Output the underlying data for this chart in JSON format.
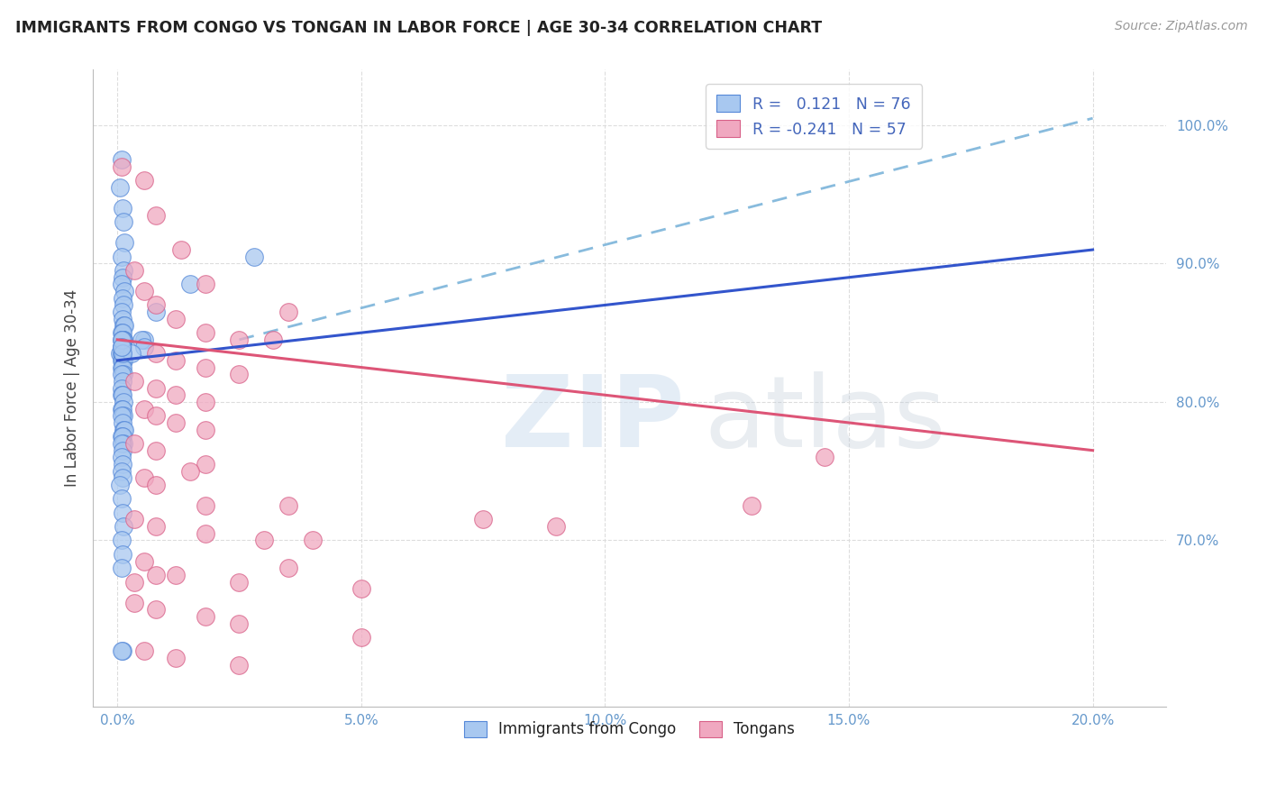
{
  "title": "IMMIGRANTS FROM CONGO VS TONGAN IN LABOR FORCE | AGE 30-34 CORRELATION CHART",
  "source": "Source: ZipAtlas.com",
  "xlabel_ticks": [
    "0.0%",
    "5.0%",
    "10.0%",
    "15.0%",
    "20.0%"
  ],
  "xlabel_vals": [
    0.0,
    5.0,
    10.0,
    15.0,
    20.0
  ],
  "ylabel_right_ticks": [
    "100.0%",
    "90.0%",
    "80.0%",
    "70.0%"
  ],
  "ylabel_right_vals": [
    100.0,
    90.0,
    80.0,
    70.0
  ],
  "xlim": [
    -0.5,
    21.5
  ],
  "ylim": [
    58.0,
    104.0
  ],
  "ylabel": "In Labor Force | Age 30-34",
  "legend_r_congo": "0.121",
  "legend_n_congo": "76",
  "legend_r_tongan": "-0.241",
  "legend_n_tongan": "57",
  "congo_color": "#A8C8F0",
  "tongan_color": "#F0A8C0",
  "congo_edge_color": "#5588D8",
  "tongan_edge_color": "#D86088",
  "congo_line_color": "#3355CC",
  "tongan_line_color": "#DD5577",
  "dashed_line_color": "#88BBDD",
  "background": "#FFFFFF",
  "grid_color": "#DDDDDD",
  "tick_color": "#6699CC",
  "ylabel_color": "#444444",
  "title_color": "#222222",
  "source_color": "#999999",
  "congo_x": [
    0.05,
    0.08,
    0.1,
    0.12,
    0.15,
    0.08,
    0.12,
    0.1,
    0.08,
    0.15,
    0.1,
    0.12,
    0.08,
    0.1,
    0.12,
    0.15,
    0.08,
    0.1,
    0.12,
    0.08,
    0.1,
    0.12,
    0.08,
    0.1,
    0.05,
    0.08,
    0.1,
    0.12,
    0.08,
    0.1,
    0.08,
    0.1,
    0.12,
    0.08,
    0.1,
    0.08,
    0.08,
    0.1,
    0.12,
    0.08,
    0.1,
    0.12,
    0.08,
    0.1,
    0.12,
    0.15,
    0.08,
    0.1,
    0.12,
    0.08,
    0.1,
    0.08,
    0.1,
    0.08,
    0.1,
    0.05,
    0.08,
    0.1,
    0.12,
    0.08,
    0.1,
    0.08,
    0.55,
    0.8,
    1.5,
    2.8,
    0.5,
    0.1,
    0.55,
    0.3,
    0.08,
    0.1,
    0.08,
    0.08,
    0.1,
    0.08
  ],
  "congo_y": [
    95.5,
    97.5,
    94.0,
    93.0,
    91.5,
    90.5,
    89.5,
    89.0,
    88.5,
    88.0,
    87.5,
    87.0,
    86.5,
    86.0,
    85.5,
    85.5,
    85.0,
    85.0,
    84.5,
    84.5,
    84.5,
    84.5,
    84.0,
    84.0,
    83.5,
    83.5,
    83.5,
    83.0,
    83.0,
    83.0,
    82.5,
    82.5,
    82.0,
    82.0,
    81.5,
    81.0,
    80.5,
    80.5,
    80.0,
    79.5,
    79.5,
    79.0,
    79.0,
    78.5,
    78.0,
    78.0,
    77.5,
    77.5,
    77.0,
    77.0,
    76.5,
    76.0,
    75.5,
    75.0,
    74.5,
    74.0,
    73.0,
    72.0,
    71.0,
    70.0,
    69.0,
    68.0,
    84.5,
    86.5,
    88.5,
    90.5,
    84.5,
    62.0,
    84.0,
    83.5,
    62.0,
    84.5,
    84.0,
    84.5,
    83.5,
    84.0
  ],
  "tongan_x": [
    0.08,
    0.55,
    0.8,
    1.8,
    3.5,
    1.3,
    0.35,
    0.55,
    0.8,
    1.2,
    1.8,
    2.5,
    3.2,
    0.8,
    1.2,
    1.8,
    2.5,
    0.35,
    0.8,
    1.2,
    1.8,
    0.55,
    0.8,
    1.2,
    1.8,
    0.35,
    0.8,
    1.8,
    0.55,
    0.8,
    1.8,
    3.5,
    0.35,
    0.8,
    1.8,
    3.0,
    4.0,
    0.55,
    1.2,
    2.5,
    5.0,
    0.35,
    0.8,
    1.8,
    2.5,
    5.0,
    0.55,
    1.2,
    2.5,
    0.8,
    0.35,
    3.5,
    1.5,
    7.5,
    14.5,
    9.0,
    13.0
  ],
  "tongan_y": [
    97.0,
    96.0,
    93.5,
    88.5,
    86.5,
    91.0,
    89.5,
    88.0,
    87.0,
    86.0,
    85.0,
    84.5,
    84.5,
    83.5,
    83.0,
    82.5,
    82.0,
    81.5,
    81.0,
    80.5,
    80.0,
    79.5,
    79.0,
    78.5,
    78.0,
    77.0,
    76.5,
    75.5,
    74.5,
    74.0,
    72.5,
    72.5,
    71.5,
    71.0,
    70.5,
    70.0,
    70.0,
    68.5,
    67.5,
    67.0,
    66.5,
    65.5,
    65.0,
    64.5,
    64.0,
    63.0,
    62.0,
    61.5,
    61.0,
    67.5,
    67.0,
    68.0,
    75.0,
    71.5,
    76.0,
    71.0,
    72.5
  ],
  "congo_trend_x0": 0.0,
  "congo_trend_y0": 83.0,
  "congo_trend_x1": 20.0,
  "congo_trend_y1": 91.0,
  "tongan_trend_x0": 0.0,
  "tongan_trend_y0": 84.5,
  "tongan_trend_x1": 20.0,
  "tongan_trend_y1": 76.5,
  "dashed_x0": 2.5,
  "dashed_y0": 84.5,
  "dashed_x1": 20.0,
  "dashed_y1": 100.5
}
